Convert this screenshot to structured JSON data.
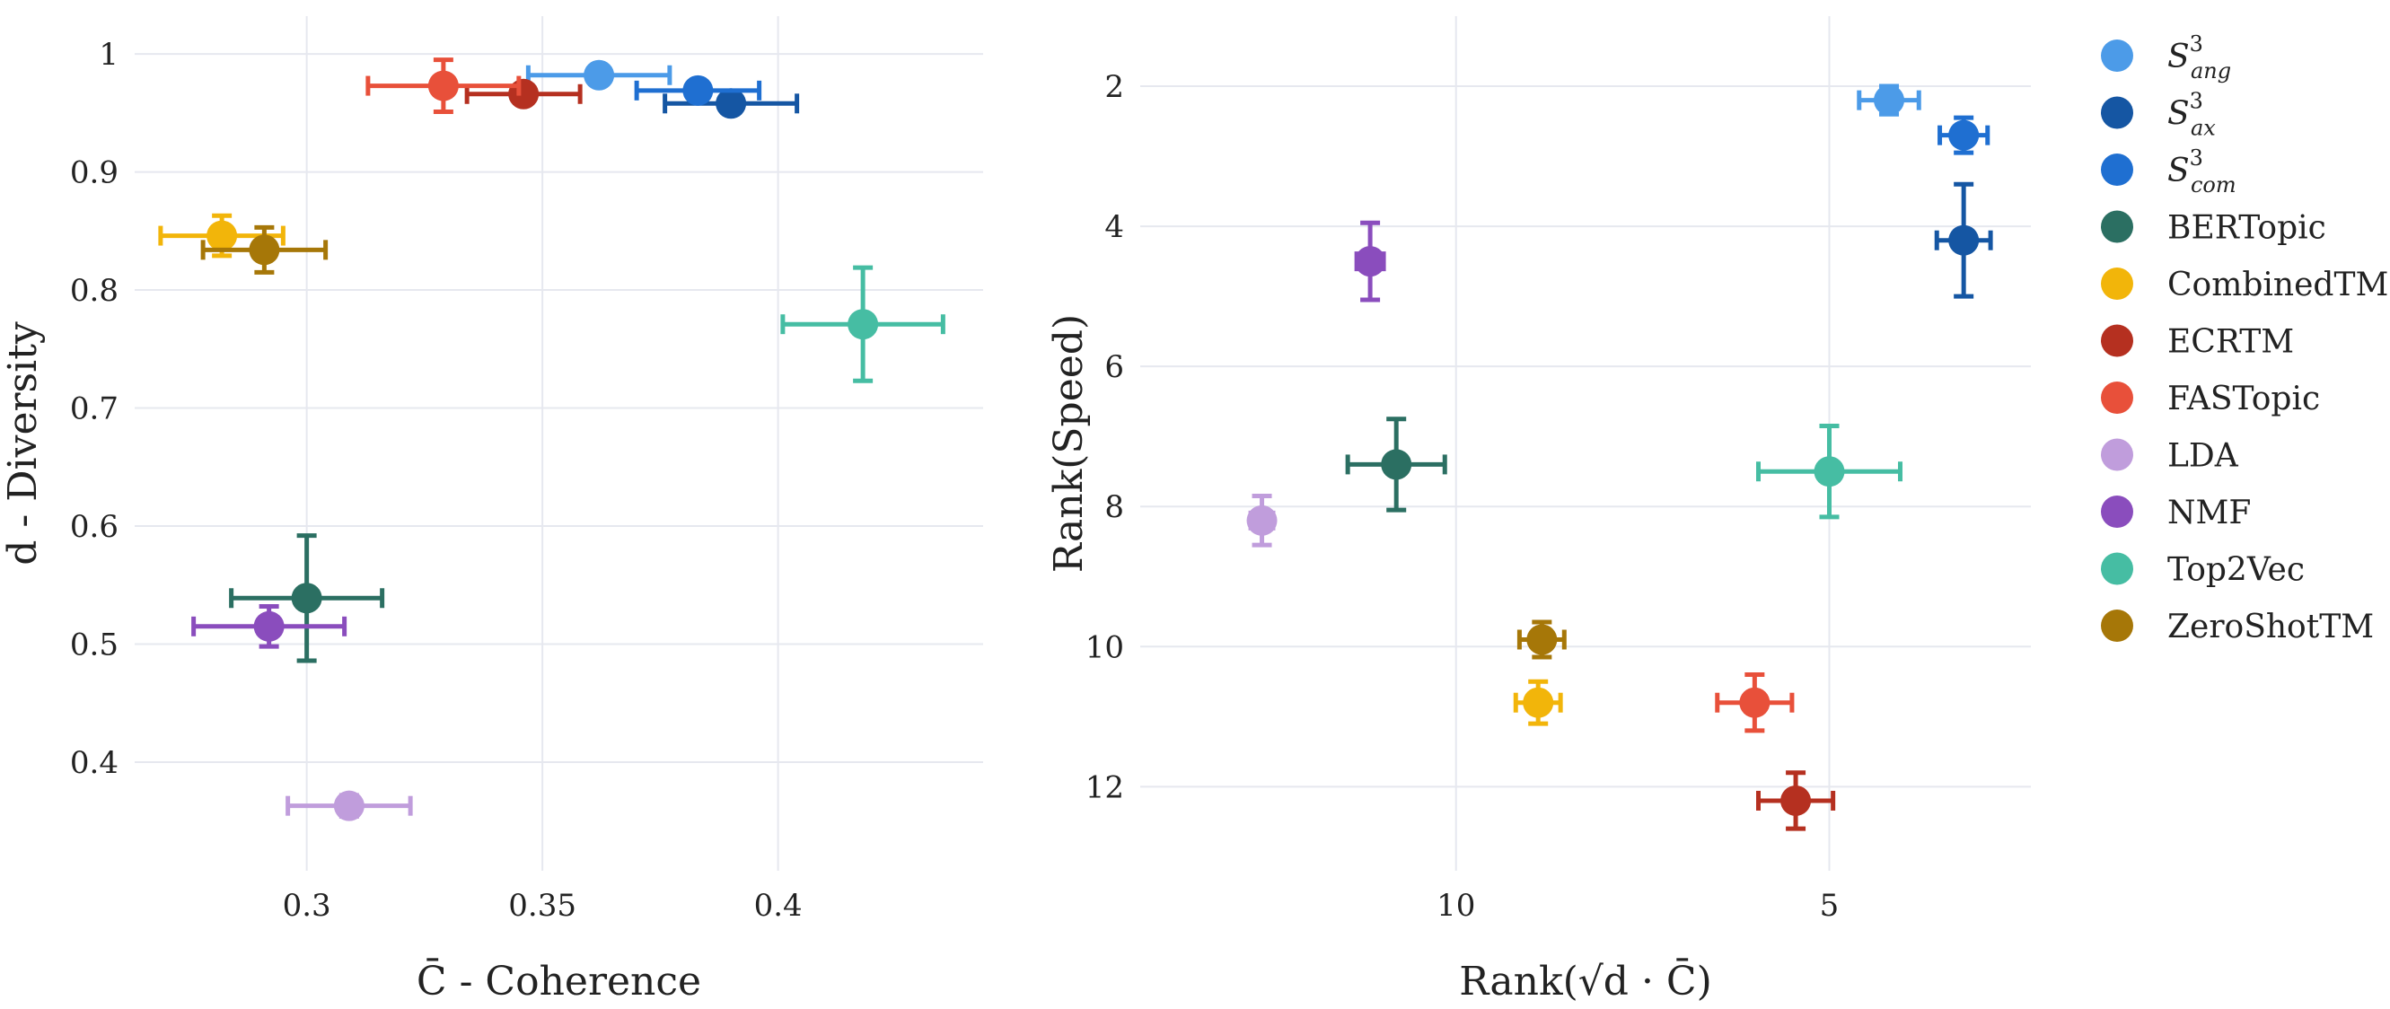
{
  "colors": {
    "S_ang": "#4c9be8",
    "S_ax": "#1556a3",
    "S_com": "#1f6fd1",
    "BERTopic": "#2b6f62",
    "CombinedTM": "#f2b50a",
    "ECRTM": "#b53020",
    "FASTopic": "#e8503a",
    "LDA": "#c09ddc",
    "NMF": "#8a4dbd",
    "Top2Vec": "#46bda3",
    "ZeroShotTM": "#a67708"
  },
  "legend": [
    {
      "key": "S_ang",
      "base": "S",
      "sup": "3",
      "sub": "ang"
    },
    {
      "key": "S_ax",
      "base": "S",
      "sup": "3",
      "sub": "ax"
    },
    {
      "key": "S_com",
      "base": "S",
      "sup": "3",
      "sub": "com"
    },
    {
      "key": "BERTopic",
      "label": "BERTopic"
    },
    {
      "key": "CombinedTM",
      "label": "CombinedTM"
    },
    {
      "key": "ECRTM",
      "label": "ECRTM"
    },
    {
      "key": "FASTopic",
      "label": "FASTopic"
    },
    {
      "key": "LDA",
      "label": "LDA"
    },
    {
      "key": "NMF",
      "label": "NMF"
    },
    {
      "key": "Top2Vec",
      "label": "Top2Vec"
    },
    {
      "key": "ZeroShotTM",
      "label": "ZeroShotTM"
    }
  ],
  "chart_data": [
    {
      "type": "scatter",
      "title": "",
      "xlabel": "C̄ - Coherence",
      "ylabel": "d - Diversity",
      "xlim": [
        0.2635,
        0.4435
      ],
      "ylim": [
        0.308,
        1.032
      ],
      "xticks": [
        0.3,
        0.35,
        0.4
      ],
      "xtick_labels": [
        "0.3",
        "0.35",
        "0.4"
      ],
      "yticks": [
        0.4,
        0.5,
        0.6,
        0.7,
        0.8,
        0.9,
        1.0
      ],
      "ytick_labels": [
        "0.4",
        "0.5",
        "0.6",
        "0.7",
        "0.8",
        "0.9",
        "1"
      ],
      "grid": true,
      "points": [
        {
          "key": "S_ang",
          "x": 0.362,
          "y": 0.982,
          "xerr": 0.015,
          "yerr": 0.003
        },
        {
          "key": "S_ax",
          "x": 0.39,
          "y": 0.958,
          "xerr": 0.014,
          "yerr": 0.003
        },
        {
          "key": "S_com",
          "x": 0.383,
          "y": 0.969,
          "xerr": 0.013,
          "yerr": 0.003
        },
        {
          "key": "BERTopic",
          "x": 0.3,
          "y": 0.539,
          "xerr": 0.016,
          "yerr": 0.053
        },
        {
          "key": "CombinedTM",
          "x": 0.282,
          "y": 0.846,
          "xerr": 0.013,
          "yerr": 0.017
        },
        {
          "key": "ECRTM",
          "x": 0.346,
          "y": 0.966,
          "xerr": 0.012,
          "yerr": 0.006
        },
        {
          "key": "FASTopic",
          "x": 0.329,
          "y": 0.973,
          "xerr": 0.016,
          "yerr": 0.022
        },
        {
          "key": "LDA",
          "x": 0.309,
          "y": 0.363,
          "xerr": 0.013,
          "yerr": 0.009
        },
        {
          "key": "NMF",
          "x": 0.292,
          "y": 0.515,
          "xerr": 0.016,
          "yerr": 0.017
        },
        {
          "key": "Top2Vec",
          "x": 0.418,
          "y": 0.771,
          "xerr": 0.017,
          "yerr": 0.048
        },
        {
          "key": "ZeroShotTM",
          "x": 0.291,
          "y": 0.834,
          "xerr": 0.013,
          "yerr": 0.019
        }
      ]
    },
    {
      "type": "scatter",
      "title": "",
      "xlabel": "Rank(√d · C̄)",
      "ylabel": "Rank(Speed)",
      "x_reversed": true,
      "y_reversed": true,
      "xlim": [
        14.23,
        2.3
      ],
      "ylim": [
        1.0,
        13.2
      ],
      "xticks": [
        10,
        5
      ],
      "xtick_labels": [
        "10",
        "5"
      ],
      "yticks": [
        2,
        4,
        6,
        8,
        10,
        12
      ],
      "ytick_labels": [
        "2",
        "4",
        "6",
        "8",
        "10",
        "12"
      ],
      "grid": true,
      "points": [
        {
          "key": "S_ang",
          "x": 4.2,
          "y": 2.2,
          "xerr": 0.4,
          "yerr": 0.2
        },
        {
          "key": "S_ax",
          "x": 3.2,
          "y": 4.2,
          "xerr": 0.36,
          "yerr": 0.8
        },
        {
          "key": "S_com",
          "x": 3.2,
          "y": 2.7,
          "xerr": 0.32,
          "yerr": 0.25
        },
        {
          "key": "BERTopic",
          "x": 10.8,
          "y": 7.4,
          "xerr": 0.65,
          "yerr": 0.65
        },
        {
          "key": "CombinedTM",
          "x": 8.9,
          "y": 10.8,
          "xerr": 0.3,
          "yerr": 0.3
        },
        {
          "key": "ECRTM",
          "x": 5.45,
          "y": 12.2,
          "xerr": 0.5,
          "yerr": 0.4
        },
        {
          "key": "FASTopic",
          "x": 6.0,
          "y": 10.8,
          "xerr": 0.5,
          "yerr": 0.4
        },
        {
          "key": "LDA",
          "x": 12.6,
          "y": 8.2,
          "xerr": 0.15,
          "yerr": 0.35
        },
        {
          "key": "NMF",
          "x": 11.15,
          "y": 4.5,
          "xerr": 0.18,
          "yerr": 0.55
        },
        {
          "key": "Top2Vec",
          "x": 5.0,
          "y": 7.5,
          "xerr": 0.95,
          "yerr": 0.65
        },
        {
          "key": "ZeroShotTM",
          "x": 8.85,
          "y": 9.9,
          "xerr": 0.3,
          "yerr": 0.25
        }
      ]
    }
  ]
}
